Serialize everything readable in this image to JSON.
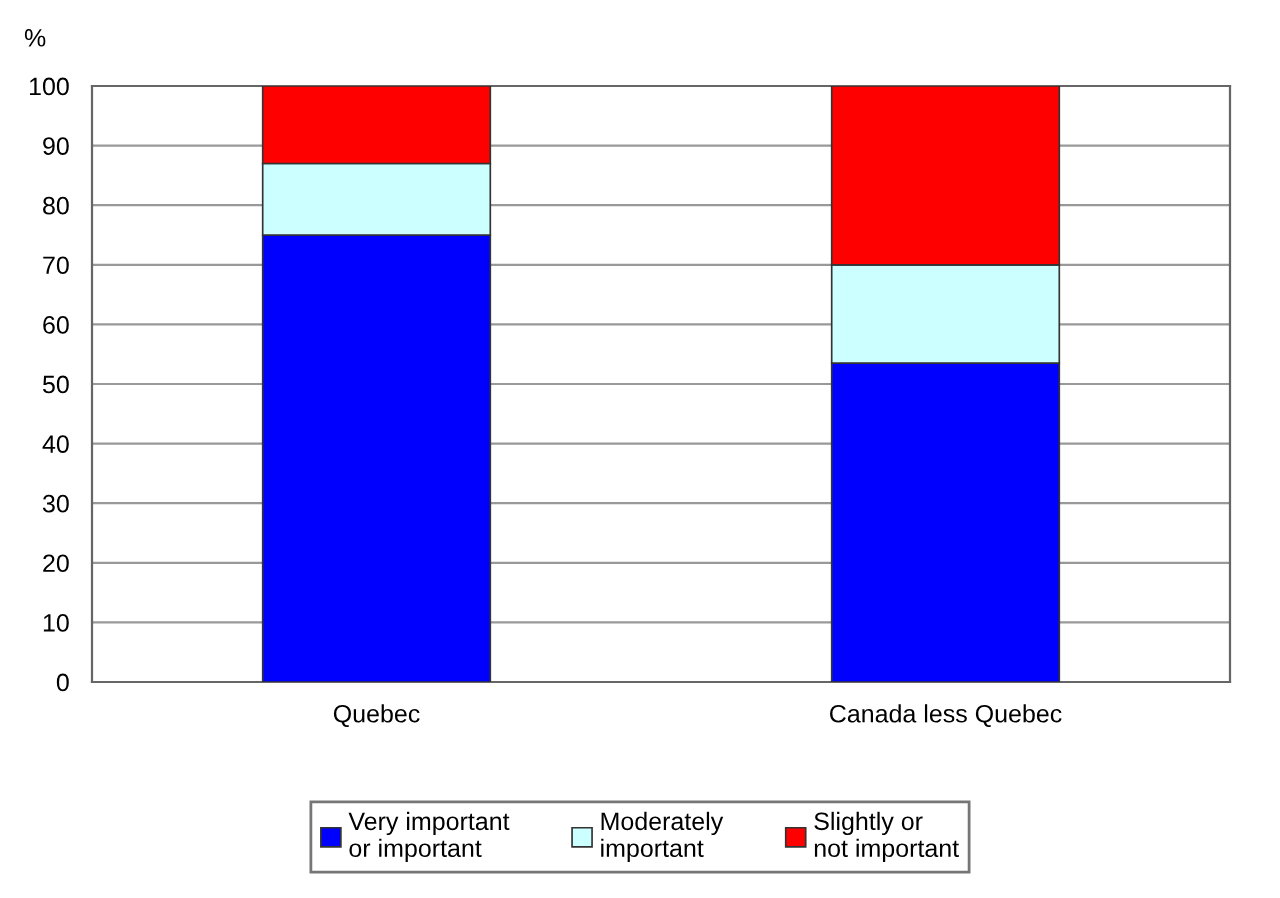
{
  "chart_data": {
    "type": "bar",
    "stacked": true,
    "ylabel": "%",
    "categories": [
      "Quebec",
      "Canada less Quebec"
    ],
    "series": [
      {
        "name": "Very important\nor important",
        "color": "#0000ff",
        "values": [
          75,
          53.5
        ]
      },
      {
        "name": "Moderately\nimportant",
        "color": "#ccffff",
        "values": [
          12,
          16.5
        ]
      },
      {
        "name": "Slightly or\nnot important",
        "color": "#ff0000",
        "values": [
          13,
          30
        ]
      }
    ],
    "ylim": [
      0,
      100
    ],
    "yticks": [
      0,
      10,
      20,
      30,
      40,
      50,
      60,
      70,
      80,
      90,
      100
    ],
    "grid": "y",
    "legend": "bottom"
  }
}
